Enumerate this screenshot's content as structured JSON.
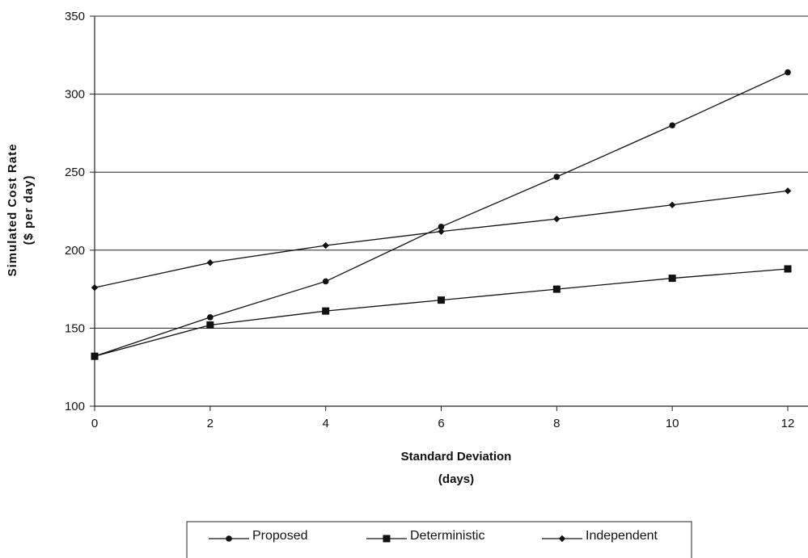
{
  "chart_data": {
    "type": "line",
    "x": [
      0,
      2,
      4,
      6,
      8,
      10,
      12
    ],
    "xlabel": [
      "Standard Deviation",
      "(days)"
    ],
    "ylabel": [
      "Simulated Cost Rate",
      "($ per day)"
    ],
    "xlim": [
      0,
      12
    ],
    "ylim": [
      100,
      350
    ],
    "xticks": [
      "0",
      "2",
      "4",
      "6",
      "8",
      "10",
      "12"
    ],
    "yticks": [
      "100",
      "150",
      "200",
      "250",
      "300",
      "350"
    ],
    "grid": "horizontal",
    "legend_position": "bottom",
    "series": [
      {
        "name": "Proposed",
        "marker": "circle",
        "values": [
          132,
          157,
          180,
          215,
          247,
          280,
          314
        ]
      },
      {
        "name": "Deterministic",
        "marker": "square",
        "values": [
          132,
          152,
          161,
          168,
          175,
          182,
          188
        ]
      },
      {
        "name": "Independent",
        "marker": "diamond",
        "values": [
          176,
          192,
          203,
          212,
          220,
          229,
          238
        ]
      }
    ]
  }
}
